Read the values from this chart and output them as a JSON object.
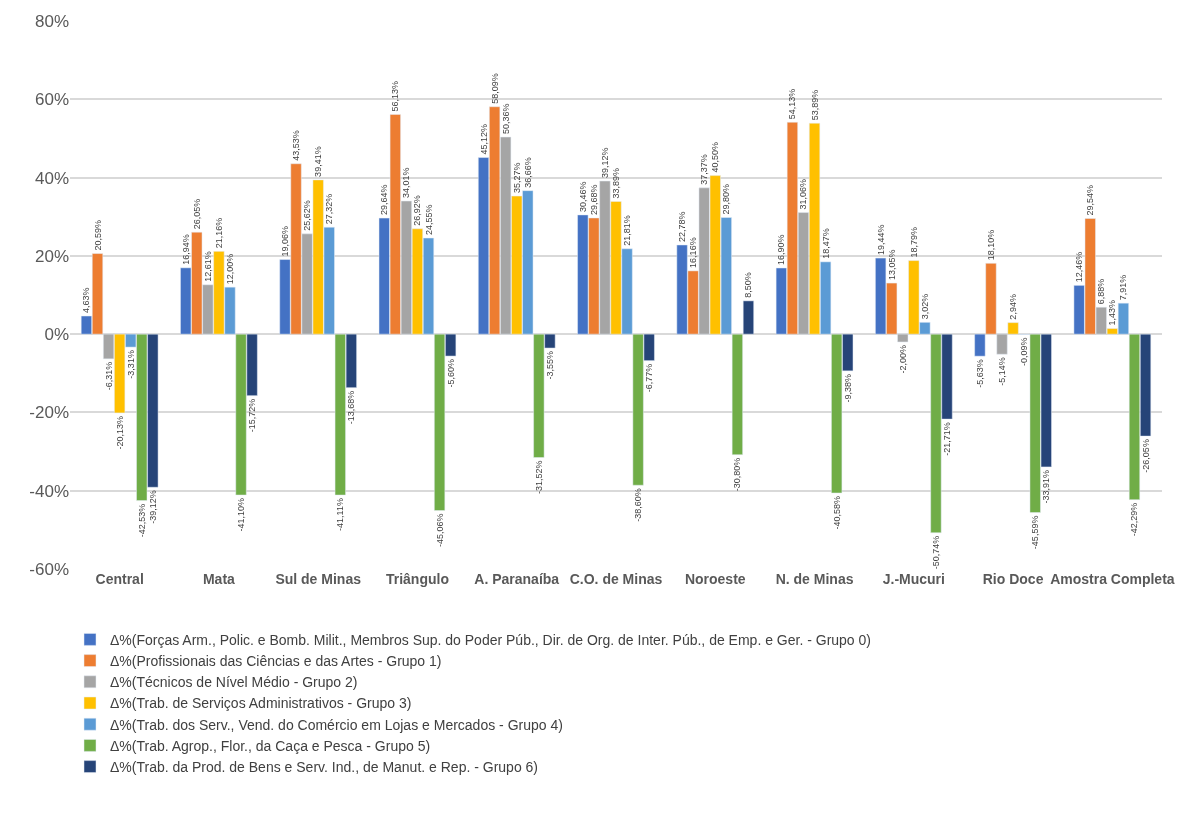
{
  "chart_data": {
    "type": "bar",
    "categories": [
      "Central",
      "Mata",
      "Sul de Minas",
      "Triângulo",
      "A. Paranaíba",
      "C.O. de Minas",
      "Noroeste",
      "N. de Minas",
      "J.-Mucuri",
      "Rio Doce",
      "Amostra Completa"
    ],
    "series": [
      {
        "name": "Δ%(Forças Arm., Polic. e Bomb. Milit., Membros Sup. do Poder Púb., Dir. de Org. de Inter. Púb., de Emp. e Ger. - Grupo 0)",
        "color": "#4472c4",
        "values": [
          4.63,
          16.94,
          19.06,
          29.64,
          45.12,
          30.46,
          22.78,
          16.9,
          19.44,
          -5.63,
          12.46
        ],
        "value_labels": [
          "4,63%",
          "16,94%",
          "19,06%",
          "29,64%",
          "45,12%",
          "30,46%",
          "22,78%",
          "16,90%",
          "19,44%",
          "-5,63%",
          "12,46%"
        ]
      },
      {
        "name": "Δ%(Profissionais das Ciências e das Artes - Grupo 1)",
        "color": "#ed7d31",
        "values": [
          20.59,
          26.05,
          43.53,
          56.13,
          58.09,
          29.68,
          16.16,
          54.13,
          13.05,
          18.1,
          29.54
        ],
        "value_labels": [
          "20,59%",
          "26,05%",
          "43,53%",
          "56,13%",
          "58,09%",
          "29,68%",
          "16,16%",
          "54,13%",
          "13,05%",
          "18,10%",
          "29,54%"
        ]
      },
      {
        "name": "Δ%(Técnicos de Nível Médio - Grupo 2)",
        "color": "#a5a5a5",
        "values": [
          -6.31,
          12.61,
          25.62,
          34.01,
          50.36,
          39.12,
          37.37,
          31.06,
          -2.0,
          -5.14,
          6.88
        ],
        "value_labels": [
          "-6,31%",
          "12,61%",
          "25,62%",
          "34,01%",
          "50,36%",
          "39,12%",
          "37,37%",
          "31,06%",
          "-2,00%",
          "-5,14%",
          "6,88%"
        ]
      },
      {
        "name": "Δ%(Trab. de Serviços Administrativos - Grupo 3)",
        "color": "#ffc000",
        "values": [
          -20.13,
          21.16,
          39.41,
          26.92,
          35.27,
          33.89,
          40.5,
          53.89,
          18.79,
          2.94,
          1.43
        ],
        "value_labels": [
          "-20,13%",
          "21,16%",
          "39,41%",
          "26,92%",
          "35,27%",
          "33,89%",
          "40,50%",
          "53,89%",
          "18,79%",
          "2,94%",
          "1,43%"
        ]
      },
      {
        "name": "Δ%(Trab. dos Serv., Vend. do Comércio em Lojas e Mercados - Grupo 4)",
        "color": "#5b9bd5",
        "values": [
          -3.31,
          12.0,
          27.32,
          24.55,
          36.66,
          21.81,
          29.8,
          18.47,
          3.02,
          -0.09,
          7.91
        ],
        "value_labels": [
          "-3,31%",
          "12,00%",
          "27,32%",
          "24,55%",
          "36,66%",
          "21,81%",
          "29,80%",
          "18,47%",
          "3,02%",
          "-0,09%",
          "7,91%"
        ]
      },
      {
        "name": "Δ%(Trab. Agrop., Flor., da Caça e Pesca - Grupo 5)",
        "color": "#70ad47",
        "values": [
          -42.53,
          -41.1,
          -41.11,
          -45.06,
          -31.52,
          -38.6,
          -30.8,
          -40.58,
          -50.74,
          -45.59,
          -42.29
        ],
        "value_labels": [
          "-42,53%",
          "-41,10%",
          "-41,11%",
          "-45,06%",
          "-31,52%",
          "-38,60%",
          "-30,80%",
          "-40,58%",
          "-50,74%",
          "-45,59%",
          "-42,29%"
        ]
      },
      {
        "name": "Δ%(Trab. da Prod. de Bens e Serv. Ind., de Manut. e Rep. - Grupo 6)",
        "color": "#264478",
        "values": [
          -39.12,
          -15.72,
          -13.68,
          -5.6,
          -3.55,
          -6.77,
          8.5,
          -9.38,
          -21.71,
          -33.91,
          -26.05
        ],
        "value_labels": [
          "-39,12%",
          "-15,72%",
          "-13,68%",
          "-5,60%",
          "-3,55%",
          "-6,77%",
          "8,50%",
          "-9,38%",
          "-21,71%",
          "-33,91%",
          "-26,05%"
        ]
      }
    ],
    "ylim": [
      -60,
      80
    ],
    "yticks": [
      {
        "value": -60,
        "label": "-60%"
      },
      {
        "value": -40,
        "label": "-40%"
      },
      {
        "value": -20,
        "label": "-20%"
      },
      {
        "value": 0,
        "label": "0%"
      },
      {
        "value": 20,
        "label": "20%"
      },
      {
        "value": 40,
        "label": "40%"
      },
      {
        "value": 60,
        "label": "60%"
      },
      {
        "value": 80,
        "label": "80%"
      }
    ],
    "grid": "y",
    "legend": "bottom"
  }
}
